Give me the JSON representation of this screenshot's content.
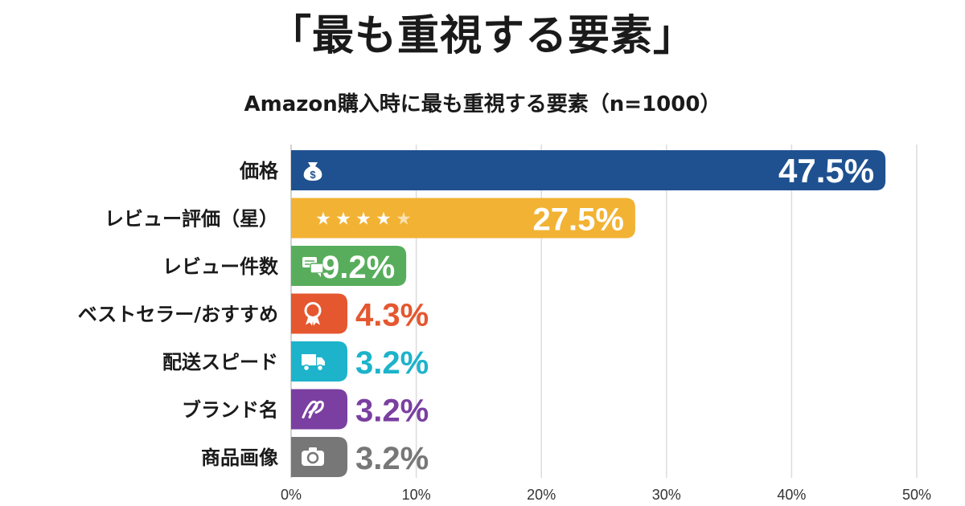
{
  "header": {
    "title": "「最も重視する要素」",
    "subtitle": "Amazon購入時に最も重視する要素（n=1000）"
  },
  "chart_data": {
    "type": "bar",
    "orientation": "horizontal",
    "title": "Amazon購入時に最も重視する要素（n=1000）",
    "xlim": [
      0,
      50
    ],
    "x_ticks": [
      "0%",
      "10%",
      "20%",
      "30%",
      "40%",
      "50%"
    ],
    "grid": "vertical",
    "categories": [
      "価格",
      "レビュー評価（星）",
      "レビュー件数",
      "ベストセラー/おすすめ",
      "配送スピード",
      "ブランド名",
      "商品画像"
    ],
    "values": [
      47.5,
      27.5,
      9.2,
      4.3,
      3.2,
      3.2,
      3.2
    ],
    "value_labels": [
      "47.5%",
      "27.5%",
      "9.2%",
      "4.3%",
      "3.2%",
      "3.2%",
      "3.2%"
    ],
    "colors": [
      "#1f5190",
      "#f2b233",
      "#58ad5c",
      "#e5572f",
      "#1cb3cb",
      "#7a3fa1",
      "#777777"
    ],
    "icons": [
      "money-bag-icon",
      "star-rating-icon",
      "chat-bubbles-icon",
      "award-ribbon-icon",
      "truck-icon",
      "brand-tag-icon",
      "camera-icon"
    ]
  }
}
